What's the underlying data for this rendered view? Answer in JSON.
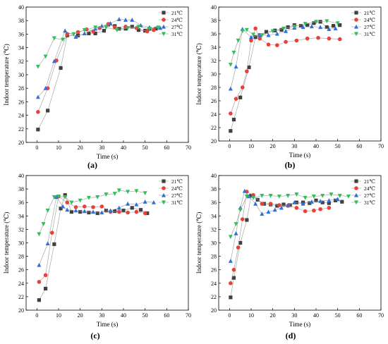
{
  "chart_data": [
    {
      "type": "scatter",
      "panel_label": "(a)",
      "xlabel": "Time (s)",
      "ylabel": "Indoor temperature (℃)",
      "xlim": [
        -5,
        70
      ],
      "ylim": [
        20,
        40
      ],
      "xticks": [
        0,
        10,
        20,
        30,
        40,
        50,
        60,
        70
      ],
      "yticks": [
        20,
        22,
        24,
        26,
        28,
        30,
        32,
        34,
        36,
        38,
        40
      ],
      "legend_position": "top-right",
      "series": [
        {
          "name": "21℃",
          "color": "#404040",
          "marker": "square",
          "x": [
            0.5,
            5,
            11,
            14,
            19,
            24,
            27,
            31,
            33,
            36,
            38,
            41,
            44,
            47,
            50,
            52,
            55
          ],
          "y": [
            21.9,
            24.7,
            31.0,
            35.8,
            35.8,
            36.1,
            36.1,
            36.5,
            37.4,
            37.2,
            36.8,
            36.8,
            37.1,
            36.6,
            36.5,
            36.8,
            36.8
          ]
        },
        {
          "name": "24℃",
          "color": "#e8413a",
          "marker": "circle",
          "x": [
            0.5,
            5,
            9,
            14,
            19,
            23,
            26,
            29,
            33,
            36,
            41,
            46,
            51,
            54
          ],
          "y": [
            24.5,
            28.0,
            32.1,
            36.0,
            36.3,
            36.7,
            36.4,
            36.9,
            37.5,
            37.0,
            37.1,
            36.9,
            36.4,
            36.6
          ]
        },
        {
          "name": "27℃",
          "color": "#2f6fdc",
          "marker": "triangle-up",
          "x": [
            0.5,
            4,
            8,
            13,
            18,
            22,
            27,
            30,
            34,
            38,
            41,
            44,
            48,
            52,
            57
          ],
          "y": [
            26.7,
            28.0,
            32.0,
            36.5,
            35.6,
            36.1,
            36.8,
            37.2,
            37.6,
            38.2,
            38.1,
            38.1,
            37.3,
            37.0,
            36.9
          ]
        },
        {
          "name": "31℃",
          "color": "#2ec05a",
          "marker": "triangle-down",
          "x": [
            0.5,
            4,
            8,
            12,
            17,
            22,
            27,
            32,
            37,
            42,
            47,
            52,
            56
          ],
          "y": [
            31.2,
            32.7,
            35.4,
            35.2,
            36.0,
            36.6,
            37.0,
            37.0,
            36.6,
            36.9,
            37.1,
            36.8,
            37.0
          ]
        }
      ]
    },
    {
      "type": "scatter",
      "panel_label": "(b)",
      "xlabel": "Time (s)",
      "ylabel": "Indoor temperature (℃)",
      "xlim": [
        -5,
        70
      ],
      "ylim": [
        20,
        40
      ],
      "xticks": [
        0,
        10,
        20,
        30,
        40,
        50,
        60,
        70
      ],
      "yticks": [
        20,
        22,
        24,
        26,
        28,
        30,
        32,
        34,
        36,
        38,
        40
      ],
      "legend_position": "top-right",
      "series": [
        {
          "name": "21℃",
          "color": "#404040",
          "marker": "square",
          "x": [
            0.5,
            2,
            5,
            9,
            12,
            14,
            17,
            21,
            24,
            27,
            30,
            33,
            36,
            39,
            42,
            45,
            48,
            51
          ],
          "y": [
            21.5,
            23.2,
            26.5,
            31.0,
            35.5,
            35.8,
            36.3,
            36.5,
            36.6,
            37.0,
            37.3,
            37.2,
            37.3,
            37.6,
            37.8,
            37.0,
            37.2,
            37.3
          ]
        },
        {
          "name": "24℃",
          "color": "#e8413a",
          "marker": "circle",
          "x": [
            0.5,
            3,
            6,
            8,
            10,
            12,
            14,
            18,
            22,
            26,
            31,
            36,
            41,
            46,
            51
          ],
          "y": [
            24.1,
            26.3,
            28.0,
            30.4,
            35.0,
            36.8,
            35.3,
            34.4,
            34.3,
            34.8,
            35.0,
            35.3,
            35.4,
            35.3,
            35.2
          ]
        },
        {
          "name": "27℃",
          "color": "#2f6fdc",
          "marker": "triangle-up",
          "x": [
            0.5,
            3,
            6,
            10,
            14,
            18,
            22,
            26,
            30,
            34,
            38,
            42,
            46,
            49
          ],
          "y": [
            27.8,
            31.1,
            36.7,
            35.5,
            35.8,
            35.8,
            36.0,
            36.4,
            36.9,
            37.0,
            37.1,
            37.0,
            36.7,
            36.8
          ]
        },
        {
          "name": "31℃",
          "color": "#2ec05a",
          "marker": "triangle-down",
          "x": [
            0.5,
            2,
            4,
            6,
            8,
            11,
            15,
            20,
            25,
            30,
            35,
            40,
            45,
            50
          ],
          "y": [
            31.4,
            33.2,
            35.0,
            36.4,
            36.6,
            35.9,
            35.8,
            36.4,
            36.8,
            37.1,
            37.5,
            37.8,
            37.9,
            37.6
          ]
        }
      ]
    },
    {
      "type": "scatter",
      "panel_label": "(c)",
      "xlabel": "Time (s)",
      "ylabel": "Indoor temperature (℃)",
      "xlim": [
        -5,
        70
      ],
      "ylim": [
        20,
        40
      ],
      "xticks": [
        0,
        10,
        20,
        30,
        40,
        50,
        60,
        70
      ],
      "yticks": [
        20,
        22,
        24,
        26,
        28,
        30,
        32,
        34,
        36,
        38,
        40
      ],
      "legend_position": "top-right",
      "series": [
        {
          "name": "21℃",
          "color": "#404040",
          "marker": "square",
          "x": [
            1,
            4,
            8,
            11,
            13,
            16,
            20,
            24,
            28,
            32,
            36,
            40,
            44,
            48,
            51
          ],
          "y": [
            21.5,
            23.2,
            29.8,
            35.1,
            37.1,
            34.6,
            34.6,
            34.5,
            34.4,
            34.8,
            34.7,
            34.8,
            35.2,
            34.9,
            34.4
          ]
        },
        {
          "name": "24℃",
          "color": "#e8413a",
          "marker": "circle",
          "x": [
            1,
            4,
            7,
            10,
            14,
            18,
            22,
            26,
            30,
            34,
            38,
            42,
            46,
            50
          ],
          "y": [
            24.2,
            25.2,
            31.5,
            36.9,
            36.0,
            35.3,
            35.4,
            35.3,
            35.4,
            34.6,
            34.6,
            34.5,
            34.6,
            34.4
          ]
        },
        {
          "name": "27℃",
          "color": "#2f6fdc",
          "marker": "triangle-up",
          "x": [
            1,
            5,
            9,
            12,
            14,
            18,
            22,
            26,
            30,
            34,
            38,
            42,
            46,
            50,
            54
          ],
          "y": [
            26.7,
            29.9,
            36.8,
            35.4,
            34.9,
            34.8,
            34.7,
            34.6,
            34.5,
            34.8,
            35.2,
            35.8,
            35.7,
            36.1,
            36.0
          ]
        },
        {
          "name": "31℃",
          "color": "#2ec05a",
          "marker": "triangle-down",
          "x": [
            1,
            3,
            5,
            8,
            10,
            13,
            16,
            20,
            24,
            28,
            32,
            36,
            38,
            42,
            46,
            50
          ],
          "y": [
            31.3,
            32.8,
            34.8,
            36.8,
            36.9,
            36.8,
            36.0,
            36.3,
            36.7,
            36.8,
            37.2,
            37.3,
            37.8,
            37.6,
            37.7,
            37.4
          ]
        }
      ]
    },
    {
      "type": "scatter",
      "panel_label": "(d)",
      "xlabel": "Time (s)",
      "ylabel": "Indoor temperature (℃)",
      "xlim": [
        -5,
        70
      ],
      "ylim": [
        20,
        40
      ],
      "xticks": [
        0,
        10,
        20,
        30,
        40,
        50,
        60,
        70
      ],
      "yticks": [
        20,
        22,
        24,
        26,
        28,
        30,
        32,
        34,
        36,
        38,
        40
      ],
      "legend_position": "top-right",
      "series": [
        {
          "name": "21℃",
          "color": "#404040",
          "marker": "square",
          "x": [
            0.5,
            2,
            5,
            8,
            10,
            13,
            16,
            19,
            22,
            25,
            28,
            31,
            34,
            37,
            40,
            43,
            46,
            49,
            52
          ],
          "y": [
            21.9,
            24.8,
            30.0,
            33.4,
            37.0,
            36.4,
            35.8,
            35.7,
            35.5,
            35.7,
            35.6,
            36.0,
            36.0,
            35.9,
            36.3,
            36.0,
            35.9,
            36.3,
            36.1
          ]
        },
        {
          "name": "24℃",
          "color": "#e8413a",
          "marker": "circle",
          "x": [
            0.5,
            2,
            4,
            6,
            8,
            11,
            15,
            19,
            23,
            27,
            31,
            35,
            39,
            42,
            46
          ],
          "y": [
            24.0,
            26.0,
            29.3,
            33.5,
            37.6,
            37.1,
            35.8,
            35.8,
            35.6,
            35.5,
            35.2,
            34.7,
            34.8,
            35.0,
            35.2
          ]
        },
        {
          "name": "27℃",
          "color": "#2f6fdc",
          "marker": "triangle-up",
          "x": [
            0.5,
            3,
            5,
            7,
            9,
            12,
            15,
            18,
            21,
            24,
            27,
            30,
            34,
            38,
            42,
            46,
            50
          ],
          "y": [
            27.3,
            31.4,
            35.2,
            37.7,
            36.9,
            35.8,
            34.3,
            34.6,
            34.9,
            35.2,
            35.6,
            36.0,
            35.8,
            36.1,
            36.2,
            36.3,
            36.5
          ]
        },
        {
          "name": "31℃",
          "color": "#2ec05a",
          "marker": "triangle-down",
          "x": [
            0.5,
            3,
            5,
            8,
            11,
            15,
            19,
            23,
            27,
            31,
            35,
            39,
            43,
            47,
            51,
            55
          ],
          "y": [
            30.9,
            32.8,
            34.9,
            36.9,
            36.7,
            37.0,
            37.0,
            36.9,
            37.0,
            37.2,
            36.7,
            36.9,
            37.0,
            37.2,
            37.0,
            36.9
          ]
        }
      ]
    }
  ]
}
